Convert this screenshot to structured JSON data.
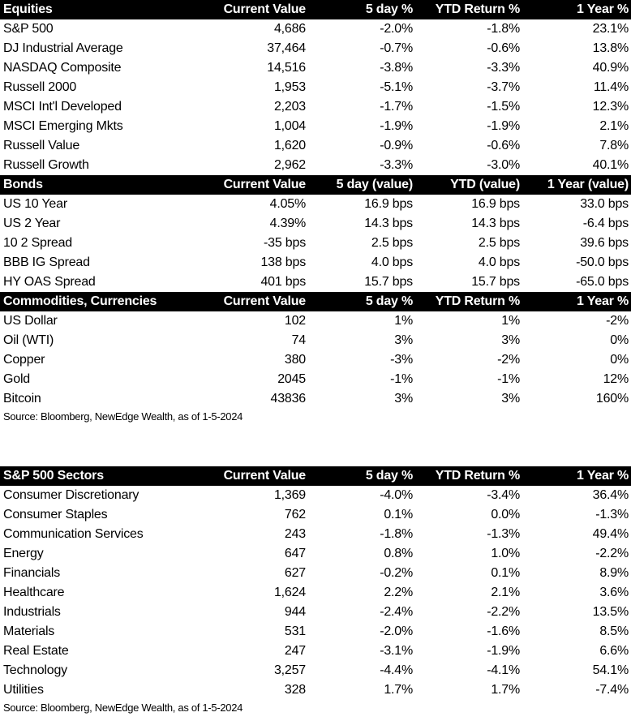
{
  "equities": {
    "headers": [
      "Equities",
      "Current Value",
      "5 day %",
      "YTD Return %",
      "1 Year %"
    ],
    "rows": [
      [
        "S&P 500",
        "4,686",
        "-2.0%",
        "-1.8%",
        "23.1%"
      ],
      [
        "DJ Industrial Average",
        "37,464",
        "-0.7%",
        "-0.6%",
        "13.8%"
      ],
      [
        "NASDAQ Composite",
        "14,516",
        "-3.8%",
        "-3.3%",
        "40.9%"
      ],
      [
        "Russell 2000",
        "1,953",
        "-5.1%",
        "-3.7%",
        "11.4%"
      ],
      [
        "MSCI Int'l Developed",
        "2,203",
        "-1.7%",
        "-1.5%",
        "12.3%"
      ],
      [
        "MSCI Emerging Mkts",
        "1,004",
        "-1.9%",
        "-1.9%",
        "2.1%"
      ],
      [
        "Russell Value",
        "1,620",
        "-0.9%",
        "-0.6%",
        "7.8%"
      ],
      [
        "Russell Growth",
        "2,962",
        "-3.3%",
        "-3.0%",
        "40.1%"
      ]
    ]
  },
  "bonds": {
    "headers": [
      "Bonds",
      "Current Value",
      "5 day (value)",
      "YTD (value)",
      "1 Year (value)"
    ],
    "rows": [
      [
        "US 10 Year",
        "4.05%",
        "16.9 bps",
        "16.9 bps",
        "33.0 bps"
      ],
      [
        "US 2 Year",
        "4.39%",
        "14.3 bps",
        "14.3 bps",
        "-6.4 bps"
      ],
      [
        "10 2 Spread",
        "-35 bps",
        "2.5 bps",
        "2.5 bps",
        "39.6 bps"
      ],
      [
        "BBB IG Spread",
        "138 bps",
        "4.0 bps",
        "4.0 bps",
        "-50.0 bps"
      ],
      [
        "HY OAS Spread",
        "401 bps",
        "15.7 bps",
        "15.7 bps",
        "-65.0 bps"
      ]
    ]
  },
  "commodities": {
    "headers": [
      "Commodities, Currencies",
      "Current Value",
      "5 day %",
      "YTD Return %",
      "1 Year %"
    ],
    "rows": [
      [
        "US Dollar",
        "102",
        "1%",
        "1%",
        "-2%"
      ],
      [
        "Oil (WTI)",
        "74",
        "3%",
        "3%",
        "0%"
      ],
      [
        "Copper",
        "380",
        "-3%",
        "-2%",
        "0%"
      ],
      [
        "Gold",
        "2045",
        "-1%",
        "-1%",
        "12%"
      ],
      [
        "Bitcoin",
        "43836",
        "3%",
        "3%",
        "160%"
      ]
    ]
  },
  "source_1": "Source: Bloomberg, NewEdge Wealth, as of 1-5-2024",
  "sectors": {
    "headers": [
      "S&P 500 Sectors",
      "Current Value",
      "5 day %",
      "YTD Return %",
      "1 Year %"
    ],
    "rows": [
      [
        "Consumer Discretionary",
        "1,369",
        "-4.0%",
        "-3.4%",
        "36.4%"
      ],
      [
        "Consumer Staples",
        "762",
        "0.1%",
        "0.0%",
        "-1.3%"
      ],
      [
        "Communication Services",
        "243",
        "-1.8%",
        "-1.3%",
        "49.4%"
      ],
      [
        "Energy",
        "647",
        "0.8%",
        "1.0%",
        "-2.2%"
      ],
      [
        "Financials",
        "627",
        "-0.2%",
        "0.1%",
        "8.9%"
      ],
      [
        "Healthcare",
        "1,624",
        "2.2%",
        "2.1%",
        "3.6%"
      ],
      [
        "Industrials",
        "944",
        "-2.4%",
        "-2.2%",
        "13.5%"
      ],
      [
        "Materials",
        "531",
        "-2.0%",
        "-1.6%",
        "8.5%"
      ],
      [
        "Real Estate",
        "247",
        "-3.1%",
        "-1.9%",
        "6.6%"
      ],
      [
        "Technology",
        "3,257",
        "-4.4%",
        "-4.1%",
        "54.1%"
      ],
      [
        "Utilities",
        "328",
        "1.7%",
        "1.7%",
        "-7.4%"
      ]
    ]
  },
  "source_2": "Source: Bloomberg, NewEdge Wealth, as of 1-5-2024"
}
